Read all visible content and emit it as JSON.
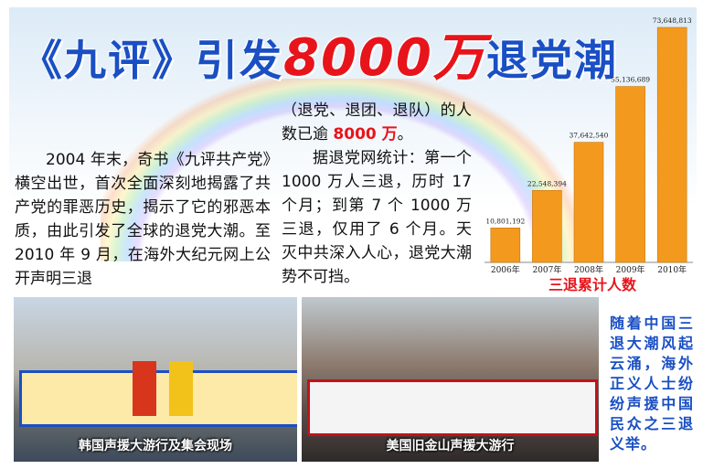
{
  "header": {
    "title_parts": [
      "《九评》引发",
      "8000万",
      "退党潮"
    ]
  },
  "article": {
    "column1": "2004 年末，奇书《九评共产党》横空出世，首次全面深刻地揭露了共产党的罪恶历史，揭示了它的邪恶本质，由此引发了全球的退党大潮。至 2010 年 9 月，在海外大纪元网上公开声明三退",
    "column2": {
      "paragraph1": [
        "（退党、退团、退队）的人数已逾 ",
        "8000 万",
        "。"
      ],
      "paragraph2": "据退党网统计：第一个 1000 万人三退，历时 17 个月；到第 7 个 1000 万三退，仅用了 6 个月。天灭中共深入人心，退党大潮势不可挡。"
    }
  },
  "chart_data": {
    "type": "bar",
    "caption": "三退累计人数",
    "categories": [
      "2006年",
      "2007年",
      "2008年",
      "2009年",
      "2010年"
    ],
    "values": [
      10801192,
      22548394,
      37642540,
      55136689,
      73648813
    ],
    "value_labels": [
      "10,801,192",
      "22,548,394",
      "37,642,540",
      "55,136,689",
      "73,648,813"
    ],
    "color": "#f39a1e"
  },
  "photos": [
    {
      "caption": "韩国声援大游行及集会现场"
    },
    {
      "caption": "美国旧金山声援大游行"
    }
  ],
  "sidebar": {
    "text": "随着中国三退大潮风起云涌，海外正义人士纷纷声援中国民众之三退义举。"
  }
}
